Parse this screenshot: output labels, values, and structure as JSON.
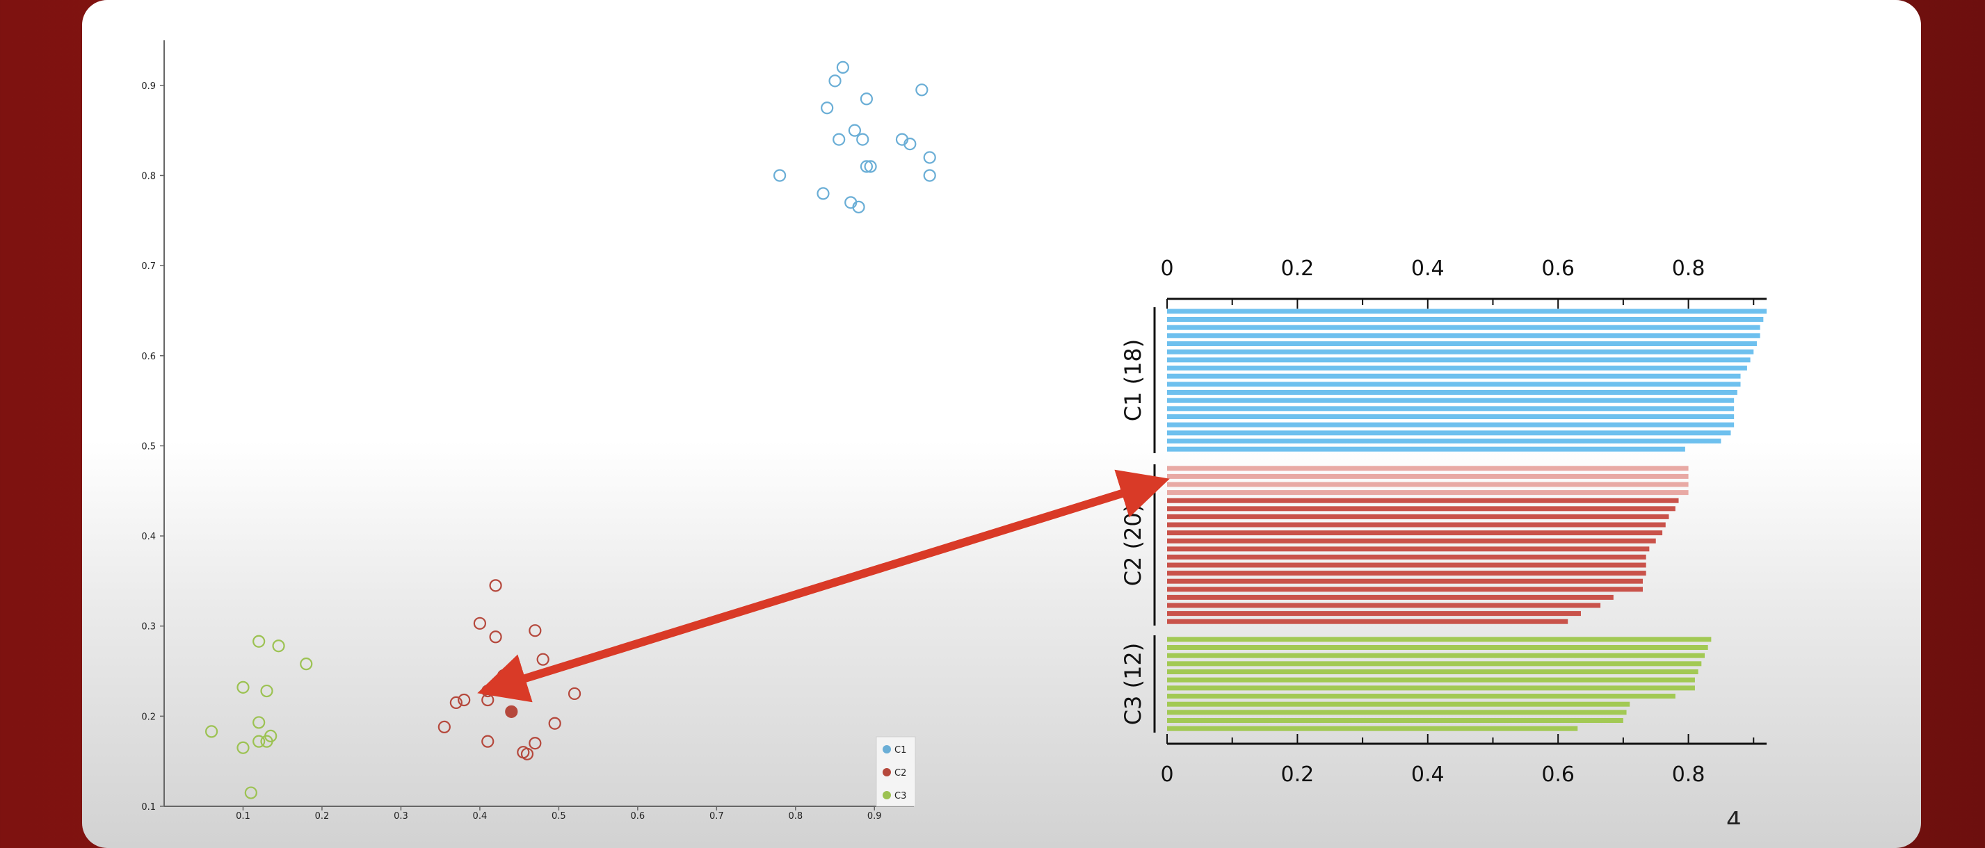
{
  "colors": {
    "c1": "#6aaed6",
    "c2": "#b5483c",
    "c3": "#9cc252",
    "arrow": "#d93a27",
    "c1_bar": "#6ec0ee",
    "c2_bar": "#c9524a",
    "c2_bar_light": "#e8a9a4",
    "c3_bar": "#a2c954"
  },
  "page_number": "4",
  "chart_data": [
    {
      "type": "scatter",
      "xlim": [
        0,
        0.95
      ],
      "ylim": [
        0.1,
        0.95
      ],
      "x_ticks": [
        "0.1",
        "0.2",
        "0.3",
        "0.4",
        "0.5",
        "0.6",
        "0.7",
        "0.8",
        "0.9"
      ],
      "y_ticks": [
        "0.1",
        "0.2",
        "0.3",
        "0.4",
        "0.5",
        "0.6",
        "0.7",
        "0.8",
        "0.9"
      ],
      "legend": {
        "position": "bottom-right",
        "entries": [
          "C1",
          "C2",
          "C3"
        ]
      },
      "series": [
        {
          "name": "C1",
          "color": "#6aaed6",
          "points": [
            [
              0.86,
              0.92
            ],
            [
              0.85,
              0.905
            ],
            [
              0.96,
              0.895
            ],
            [
              0.84,
              0.875
            ],
            [
              0.89,
              0.885
            ],
            [
              0.875,
              0.85
            ],
            [
              0.855,
              0.84
            ],
            [
              0.885,
              0.84
            ],
            [
              0.935,
              0.84
            ],
            [
              0.945,
              0.835
            ],
            [
              0.78,
              0.8
            ],
            [
              0.97,
              0.82
            ],
            [
              0.97,
              0.8
            ],
            [
              0.89,
              0.81
            ],
            [
              0.895,
              0.81
            ],
            [
              0.835,
              0.78
            ],
            [
              0.87,
              0.77
            ],
            [
              0.88,
              0.765
            ]
          ]
        },
        {
          "name": "C2",
          "color": "#b5483c",
          "points": [
            [
              0.42,
              0.345
            ],
            [
              0.4,
              0.303
            ],
            [
              0.47,
              0.295
            ],
            [
              0.42,
              0.288
            ],
            [
              0.48,
              0.263
            ],
            [
              0.41,
              0.228
            ],
            [
              0.52,
              0.225
            ],
            [
              0.41,
              0.218
            ],
            [
              0.37,
              0.215
            ],
            [
              0.38,
              0.218
            ],
            [
              0.495,
              0.192
            ],
            [
              0.355,
              0.188
            ],
            [
              0.41,
              0.172
            ],
            [
              0.47,
              0.17
            ],
            [
              0.455,
              0.16
            ],
            [
              0.46,
              0.158
            ],
            [
              0.43,
              0.245
            ],
            [
              0.435,
              0.248
            ],
            [
              0.425,
              0.237
            ],
            [
              0.44,
              0.205
            ]
          ],
          "filled": [
            16,
            17,
            18,
            19
          ]
        },
        {
          "name": "C3",
          "color": "#9cc252",
          "points": [
            [
              0.12,
              0.283
            ],
            [
              0.145,
              0.278
            ],
            [
              0.18,
              0.258
            ],
            [
              0.1,
              0.232
            ],
            [
              0.13,
              0.228
            ],
            [
              0.06,
              0.183
            ],
            [
              0.12,
              0.193
            ],
            [
              0.135,
              0.178
            ],
            [
              0.12,
              0.172
            ],
            [
              0.13,
              0.172
            ],
            [
              0.1,
              0.165
            ],
            [
              0.11,
              0.115
            ]
          ]
        }
      ]
    },
    {
      "type": "bar",
      "orientation": "horizontal",
      "xlim": [
        0,
        0.92
      ],
      "x_ticks": [
        "0",
        "0.2",
        "0.4",
        "0.6",
        "0.8"
      ],
      "groups": [
        {
          "label": "C1 (18)",
          "color": "#6ec0ee",
          "values": [
            0.92,
            0.915,
            0.91,
            0.91,
            0.905,
            0.9,
            0.895,
            0.89,
            0.88,
            0.88,
            0.875,
            0.87,
            0.87,
            0.87,
            0.87,
            0.865,
            0.85,
            0.795
          ]
        },
        {
          "label": "C2 (20)",
          "color": "#c9524a",
          "light_color": "#e8a9a4",
          "light_count": 4,
          "values": [
            0.8,
            0.8,
            0.8,
            0.8,
            0.785,
            0.78,
            0.77,
            0.765,
            0.76,
            0.75,
            0.74,
            0.735,
            0.735,
            0.735,
            0.73,
            0.73,
            0.685,
            0.665,
            0.635,
            0.615
          ]
        },
        {
          "label": "C3 (12)",
          "color": "#a2c954",
          "values": [
            0.835,
            0.83,
            0.825,
            0.82,
            0.815,
            0.81,
            0.81,
            0.78,
            0.71,
            0.705,
            0.7,
            0.63
          ]
        }
      ]
    }
  ]
}
